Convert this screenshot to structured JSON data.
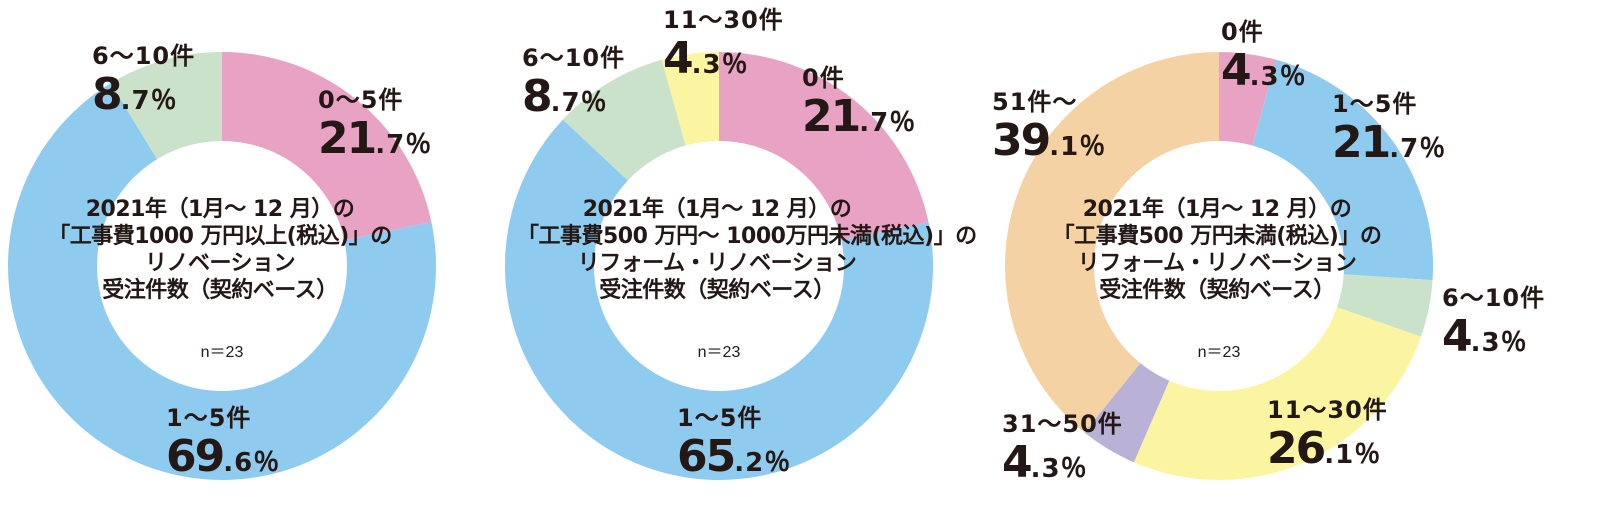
{
  "charts": [
    {
      "title_lines": [
        "2021年（1月～ 12 月）の",
        "「工事費1000 万円以上(税込)」の",
        "リノベーション",
        "受注件数（契約ベース）"
      ],
      "n_label": "n＝23"
    },
    {
      "title_lines": [
        "2021年（1月～ 12 月）の",
        "「工事費500 万円～ 1000万円未満(税込)」の",
        "リフォーム・リノベーション",
        "受注件数（契約ベース）"
      ],
      "n_label": "n＝23"
    },
    {
      "title_lines": [
        "2021年（1月～ 12 月）の",
        "「工事費500 万円未満(税込)」の",
        "リフォーム・リノベーション",
        "受注件数（契約ベース）"
      ],
      "n_label": "n＝23"
    }
  ],
  "chart_data": [
    {
      "type": "pie",
      "title": "2021年（1月～ 12 月）の「工事費1000 万円以上(税込)」のリノベーション受注件数（契約ベース）",
      "n": "n＝23",
      "slices": [
        {
          "label": "0～5件",
          "value": 21.7,
          "int": "21",
          "dec": ".7％",
          "color": "#e8a3c4"
        },
        {
          "label": "1～5件",
          "value": 69.6,
          "int": "69",
          "dec": ".6％",
          "color": "#8ecbee"
        },
        {
          "label": "6～10件",
          "value": 8.7,
          "int": "8",
          "dec": ".7％",
          "color": "#c9e2c9"
        }
      ]
    },
    {
      "type": "pie",
      "title": "2021年（1月～ 12 月）の「工事費500 万円～ 1000万円未満(税込)」のリフォーム・リノベーション受注件数（契約ベース）",
      "n": "n＝23",
      "slices": [
        {
          "label": "0件",
          "value": 21.7,
          "int": "21",
          "dec": ".7％",
          "color": "#e8a3c4"
        },
        {
          "label": "1～5件",
          "value": 65.2,
          "int": "65",
          "dec": ".2％",
          "color": "#8ecbee"
        },
        {
          "label": "6～10件",
          "value": 8.7,
          "int": "8",
          "dec": ".7％",
          "color": "#c9e2c9"
        },
        {
          "label": "11～30件",
          "value": 4.3,
          "int": "4",
          "dec": ".3％",
          "color": "#fbf5a2"
        }
      ]
    },
    {
      "type": "pie",
      "title": "2021年（1月～ 12 月）の「工事費500 万円未満(税込)」のリフォーム・リノベーション受注件数（契約ベース）",
      "n": "n＝23",
      "slices": [
        {
          "label": "0件",
          "value": 4.3,
          "int": "4",
          "dec": ".3％",
          "color": "#e8a3c4"
        },
        {
          "label": "1～5件",
          "value": 21.7,
          "int": "21",
          "dec": ".7％",
          "color": "#8ecbee"
        },
        {
          "label": "6～10件",
          "value": 4.3,
          "int": "4",
          "dec": ".3％",
          "color": "#c9e2c9"
        },
        {
          "label": "11～30件",
          "value": 26.1,
          "int": "26",
          "dec": ".1％",
          "color": "#fbf5a2"
        },
        {
          "label": "31～50件",
          "value": 4.3,
          "int": "4",
          "dec": ".3％",
          "color": "#b9b1d6"
        },
        {
          "label": "51件～",
          "value": 39.1,
          "int": "39",
          "dec": ".1％",
          "color": "#f4d2a4"
        }
      ]
    }
  ]
}
